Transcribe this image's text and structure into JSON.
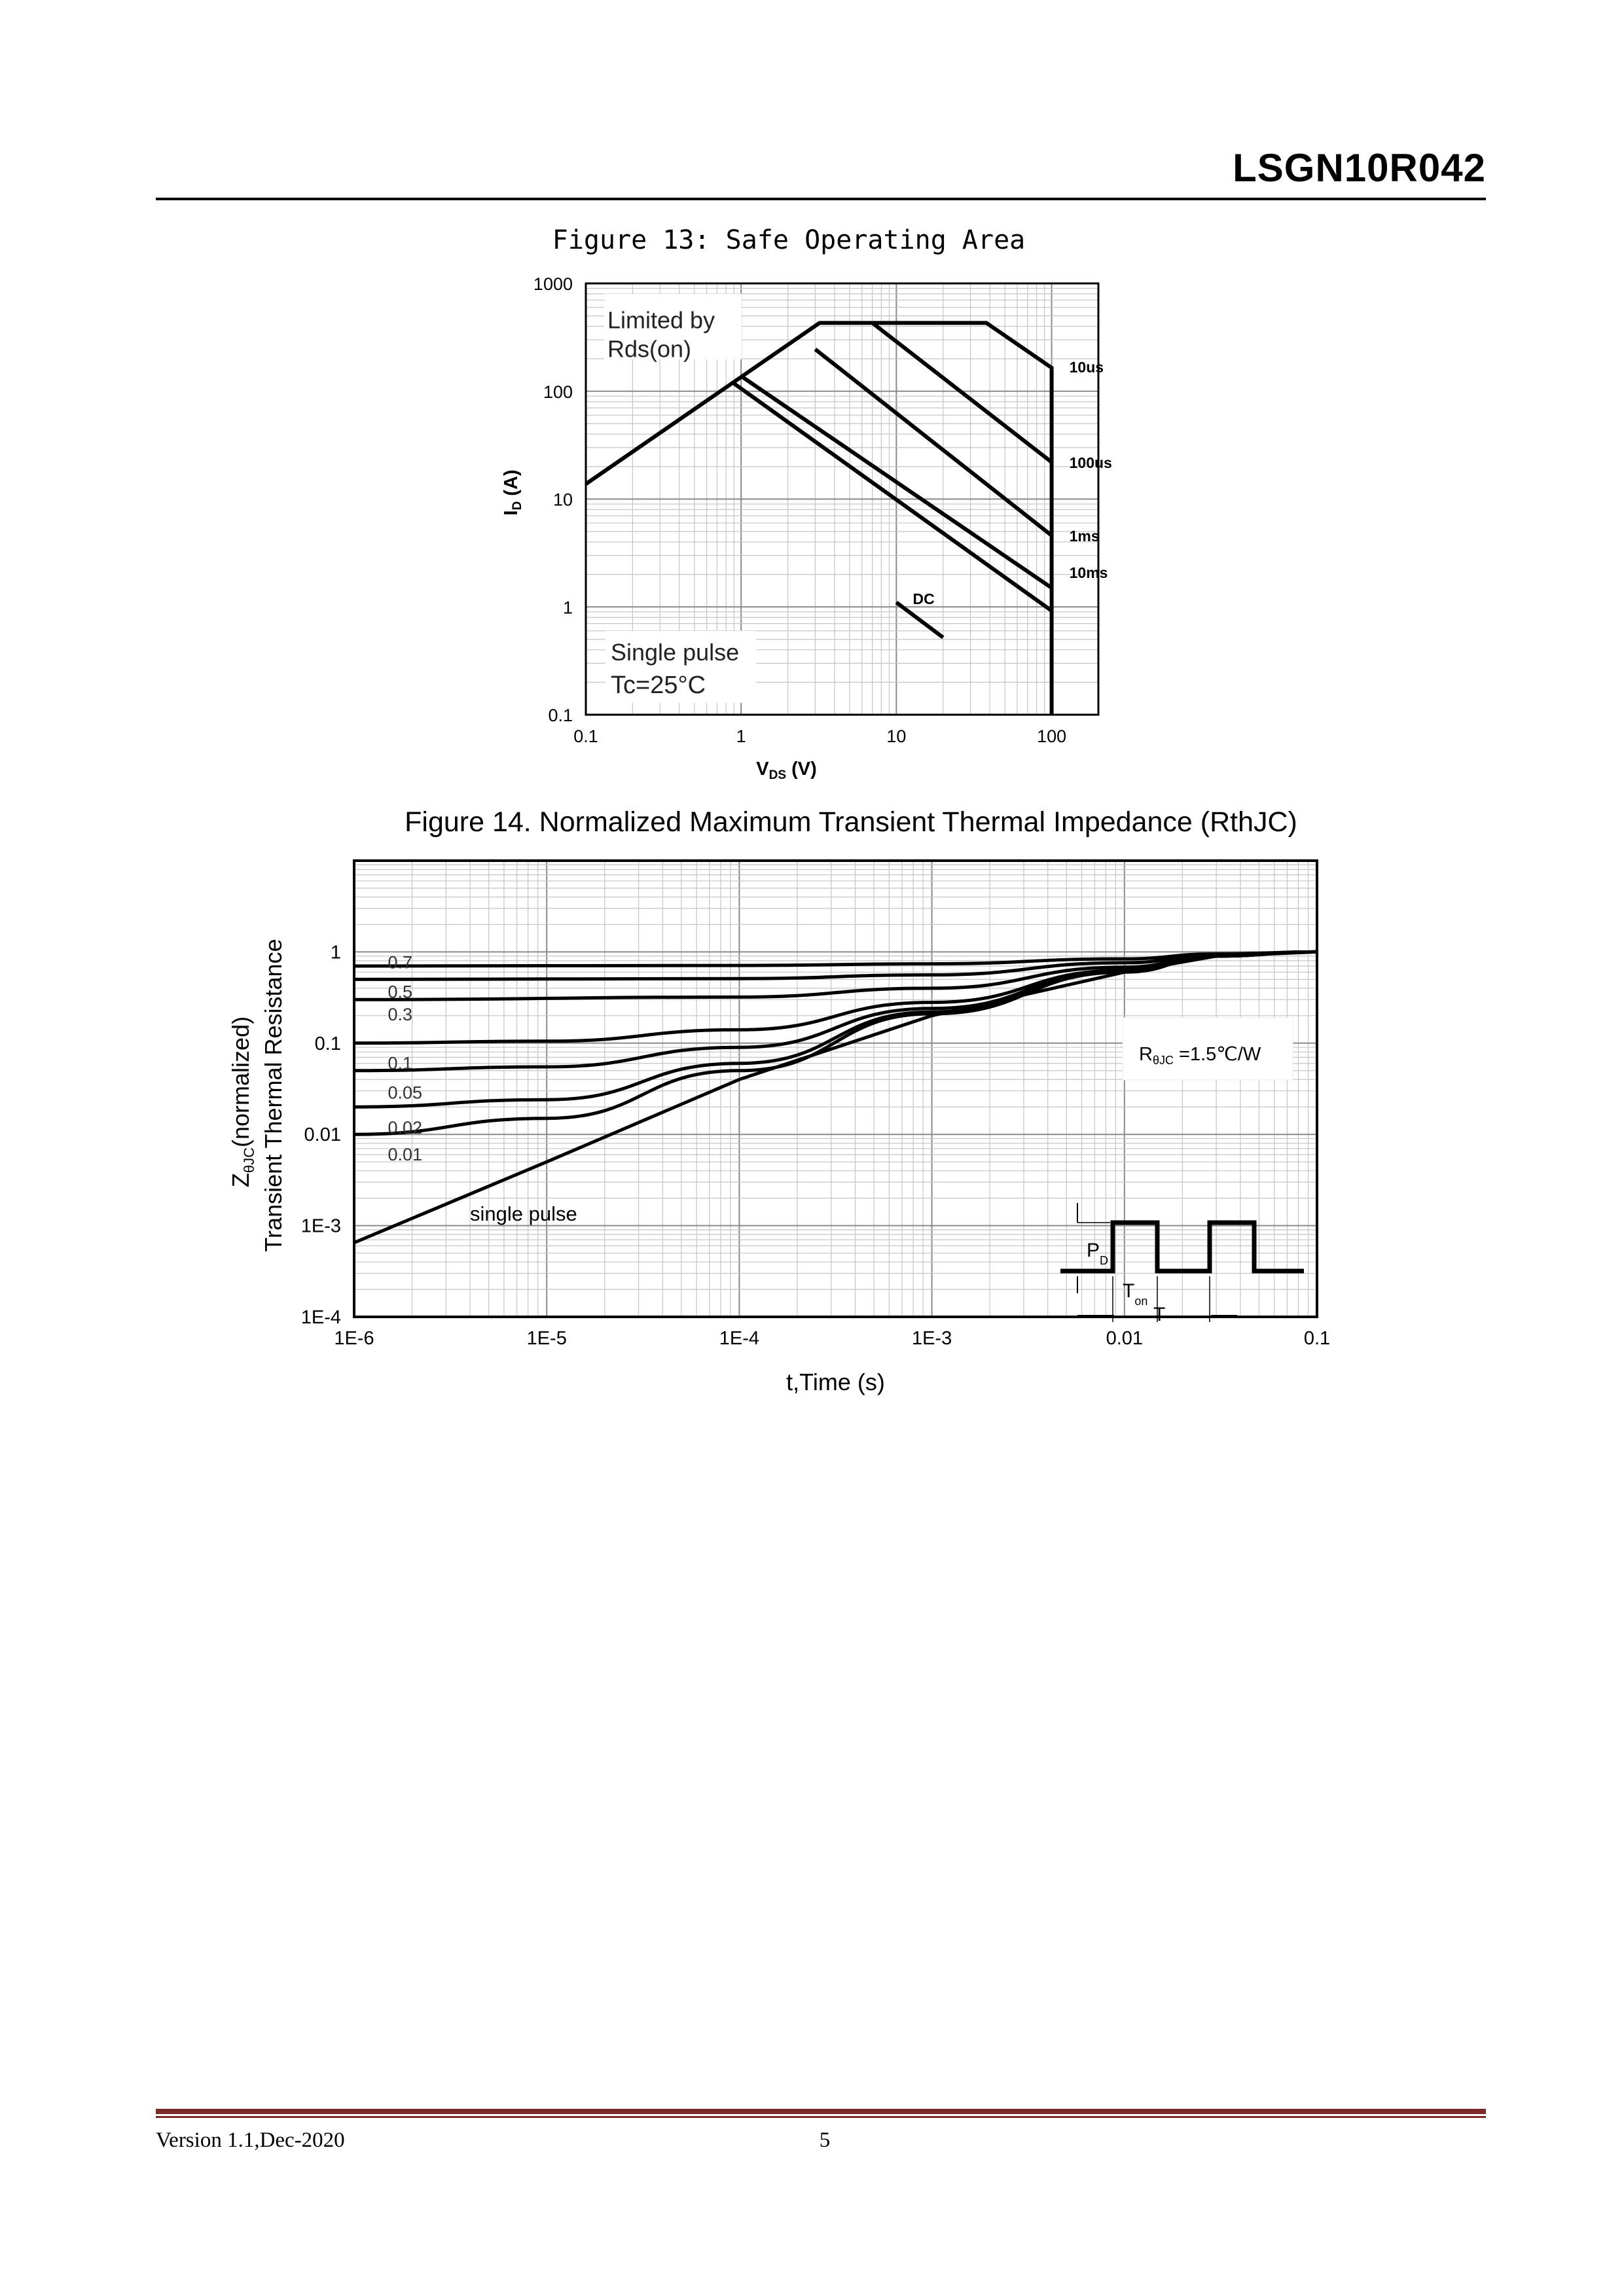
{
  "header": {
    "part_number": "LSGN10R042"
  },
  "chart_data": [
    {
      "id": "figure-13",
      "type": "line",
      "title": "Figure 13: Safe Operating Area",
      "xlabel_main": "V",
      "xlabel_sub": "DS",
      "xlabel_unit": " (V)",
      "ylabel_main": "I",
      "ylabel_sub": "D",
      "ylabel_unit": " (A)",
      "x_scale": "log",
      "y_scale": "log",
      "xlim": [
        0.1,
        200
      ],
      "ylim": [
        0.1,
        1000
      ],
      "grid": true,
      "x_ticks": [
        {
          "value": 0.1,
          "label": "0.1"
        },
        {
          "value": 1,
          "label": "1"
        },
        {
          "value": 10,
          "label": "10"
        },
        {
          "value": 100,
          "label": "100"
        }
      ],
      "y_ticks": [
        {
          "value": 0.1,
          "label": "0.1"
        },
        {
          "value": 1,
          "label": "1"
        },
        {
          "value": 10,
          "label": "10"
        },
        {
          "value": 100,
          "label": "100"
        },
        {
          "value": 1000,
          "label": "1000"
        }
      ],
      "annotations": {
        "limit_line1": "Limited by",
        "limit_line2": "Rds(on)",
        "cond_line1": "Single pulse",
        "cond_line2": "Tc=25°C"
      },
      "series": [
        {
          "name": "",
          "points": [
            [
              0.1,
              13.8
            ],
            [
              3.2,
              430
            ],
            [
              38,
              430
            ],
            [
              100,
              165
            ],
            [
              100,
              0.1
            ]
          ]
        },
        {
          "name": "10us",
          "points": [
            [
              7,
              430
            ],
            [
              100,
              22
            ]
          ]
        },
        {
          "name": "100us",
          "points": [
            [
              3,
              245
            ],
            [
              100,
              4.6
            ]
          ]
        },
        {
          "name": "1ms",
          "points": [
            [
              1,
              138
            ],
            [
              100,
              1.5
            ]
          ]
        },
        {
          "name": "10ms",
          "points": [
            [
              0.9,
              118
            ],
            [
              100,
              0.92
            ]
          ]
        },
        {
          "name": "DC",
          "points": [
            [
              10,
              1.1
            ],
            [
              20,
              0.52
            ]
          ]
        }
      ],
      "series_labels": [
        {
          "name": "10us",
          "at": [
            130,
            170
          ]
        },
        {
          "name": "100us",
          "at": [
            130,
            22
          ]
        },
        {
          "name": "1ms",
          "at": [
            130,
            4.6
          ]
        },
        {
          "name": "10ms",
          "at": [
            130,
            2.1
          ]
        },
        {
          "name": "DC",
          "at": [
            15,
            1.2
          ]
        }
      ]
    },
    {
      "id": "figure-14",
      "type": "line",
      "title": "Figure 14. Normalized Maximum Transient Thermal Impedance (RthJC)",
      "xlabel": "t,Time (s)",
      "ylabel_line1": "Transient Thermal Resistance",
      "ylabel_z": "Z",
      "ylabel_sub": "θJC",
      "ylabel_rest": "(normalized)",
      "x_scale": "log",
      "y_scale": "log",
      "xlim": [
        1e-06,
        0.1
      ],
      "ylim": [
        0.0001,
        10
      ],
      "grid": true,
      "x_ticks": [
        {
          "value": 1e-06,
          "label": "1E-6"
        },
        {
          "value": 1e-05,
          "label": "1E-5"
        },
        {
          "value": 0.0001,
          "label": "1E-4"
        },
        {
          "value": 0.001,
          "label": "1E-3"
        },
        {
          "value": 0.01,
          "label": "0.01"
        },
        {
          "value": 0.1,
          "label": "0.1"
        }
      ],
      "y_ticks": [
        {
          "value": 0.0001,
          "label": "1E-4"
        },
        {
          "value": 0.001,
          "label": "1E-3"
        },
        {
          "value": 0.01,
          "label": "0.01"
        },
        {
          "value": 0.1,
          "label": "0.1"
        },
        {
          "value": 1,
          "label": "1"
        }
      ],
      "annotations": {
        "rth_main": "R",
        "rth_sub": "θJC",
        "rth_rest": " =1.5℃/W",
        "single_pulse": "single pulse",
        "pd_main": "P",
        "pd_sub": "D",
        "ton_main": "T",
        "ton_sub": "on",
        "t_label": "T"
      },
      "series": [
        {
          "name": "0.7",
          "points": [
            [
              1e-06,
              0.7
            ],
            [
              0.0001,
              0.71
            ],
            [
              0.001,
              0.74
            ],
            [
              0.01,
              0.84
            ],
            [
              0.03,
              0.95
            ],
            [
              0.1,
              1.0
            ]
          ]
        },
        {
          "name": "0.5",
          "points": [
            [
              1e-06,
              0.5
            ],
            [
              0.0001,
              0.51
            ],
            [
              0.001,
              0.56
            ],
            [
              0.01,
              0.76
            ],
            [
              0.03,
              0.93
            ],
            [
              0.1,
              1.0
            ]
          ]
        },
        {
          "name": "0.3",
          "points": [
            [
              1e-06,
              0.3
            ],
            [
              0.0001,
              0.32
            ],
            [
              0.001,
              0.4
            ],
            [
              0.01,
              0.68
            ],
            [
              0.03,
              0.91
            ],
            [
              0.1,
              1.0
            ]
          ]
        },
        {
          "name": "0.1",
          "points": [
            [
              1e-06,
              0.1
            ],
            [
              1e-05,
              0.105
            ],
            [
              0.0001,
              0.14
            ],
            [
              0.001,
              0.28
            ],
            [
              0.01,
              0.63
            ],
            [
              0.03,
              0.9
            ],
            [
              0.1,
              1.0
            ]
          ]
        },
        {
          "name": "0.05",
          "points": [
            [
              1e-06,
              0.05
            ],
            [
              1e-05,
              0.055
            ],
            [
              0.0001,
              0.09
            ],
            [
              0.001,
              0.24
            ],
            [
              0.01,
              0.62
            ],
            [
              0.03,
              0.9
            ],
            [
              0.1,
              1.0
            ]
          ]
        },
        {
          "name": "0.02",
          "points": [
            [
              1e-06,
              0.02
            ],
            [
              1e-05,
              0.024
            ],
            [
              0.0001,
              0.06
            ],
            [
              0.001,
              0.22
            ],
            [
              0.01,
              0.61
            ],
            [
              0.03,
              0.9
            ],
            [
              0.1,
              1.0
            ]
          ]
        },
        {
          "name": "0.01",
          "points": [
            [
              1e-06,
              0.01
            ],
            [
              1e-05,
              0.015
            ],
            [
              0.0001,
              0.05
            ],
            [
              0.001,
              0.21
            ],
            [
              0.01,
              0.6
            ],
            [
              0.03,
              0.9
            ],
            [
              0.1,
              1.0
            ]
          ]
        },
        {
          "name": "single pulse",
          "points": [
            [
              1e-06,
              0.00065
            ],
            [
              1e-05,
              0.005
            ],
            [
              0.0001,
              0.04
            ],
            [
              0.001,
              0.2
            ],
            [
              0.01,
              0.6
            ],
            [
              0.03,
              0.9
            ],
            [
              0.1,
              1.0
            ]
          ]
        }
      ],
      "series_labels": [
        {
          "name": "0.7",
          "at": [
            1.3e-06,
            0.78
          ]
        },
        {
          "name": "0.5",
          "at": [
            1.3e-06,
            0.37
          ]
        },
        {
          "name": "0.3",
          "at": [
            1.3e-06,
            0.21
          ]
        },
        {
          "name": "0.1",
          "at": [
            1.3e-06,
            0.061
          ]
        },
        {
          "name": "0.05",
          "at": [
            1.3e-06,
            0.029
          ]
        },
        {
          "name": "0.02",
          "at": [
            1.3e-06,
            0.012
          ]
        },
        {
          "name": "0.01",
          "at": [
            1.3e-06,
            0.0061
          ]
        }
      ]
    }
  ],
  "footer": {
    "version": "Version 1.1,Dec-2020",
    "page_number": "5"
  }
}
